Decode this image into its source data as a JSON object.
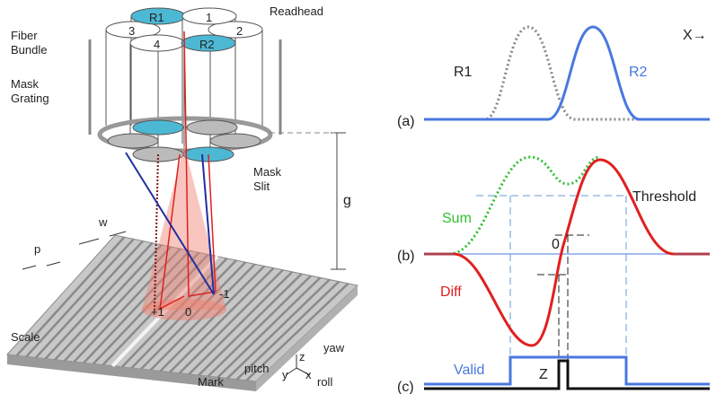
{
  "left": {
    "readhead": "Readhead",
    "fiber_bundle": [
      "Fiber",
      "Bundle"
    ],
    "fibers": [
      "R1",
      "1",
      "3",
      "2",
      "4",
      "R2"
    ],
    "mask_grating": [
      "Mask",
      "Grating"
    ],
    "mask_slit": [
      "Mask",
      "Slit"
    ],
    "gap": "g",
    "pitch_p": "p",
    "width_w": "w",
    "scale": "Scale",
    "mark": "Mark",
    "orders": [
      "+1",
      "0",
      "-1"
    ],
    "axes": {
      "yaw": "yaw",
      "pitch": "pitch",
      "roll": "roll",
      "y": "y",
      "z": "z",
      "x": "x"
    }
  },
  "right": {
    "direction": "X→",
    "panels": [
      "(a)",
      "(b)",
      "(c)"
    ],
    "r1": "R1",
    "r2": "R2",
    "sum": "Sum",
    "diff": "Diff",
    "threshold": "Threshold",
    "zero": "0",
    "valid": "Valid",
    "z": "Z"
  }
}
